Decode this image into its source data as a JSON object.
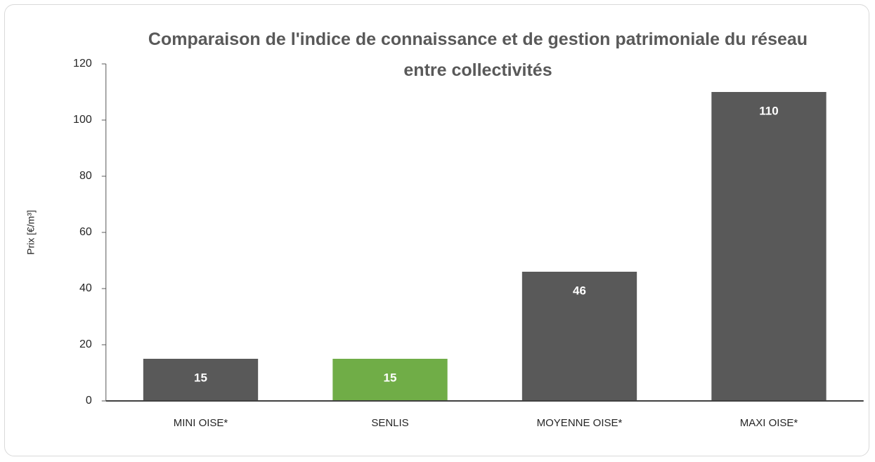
{
  "chart_data": {
    "type": "bar",
    "title": "Comparaison de l'indice de connaissance et de gestion patrimoniale du réseau entre collectivités",
    "ylabel": "Prix [€/m³]",
    "categories": [
      "MINI OISE*",
      "SENLIS",
      "MOYENNE OISE*",
      "MAXI OISE*"
    ],
    "values": [
      15,
      15,
      46,
      110
    ],
    "colors": [
      "#595959",
      "#70ad47",
      "#595959",
      "#595959"
    ],
    "ylim": [
      0,
      120
    ],
    "yticks": [
      0,
      20,
      40,
      60,
      80,
      100,
      120
    ],
    "grid": false
  }
}
